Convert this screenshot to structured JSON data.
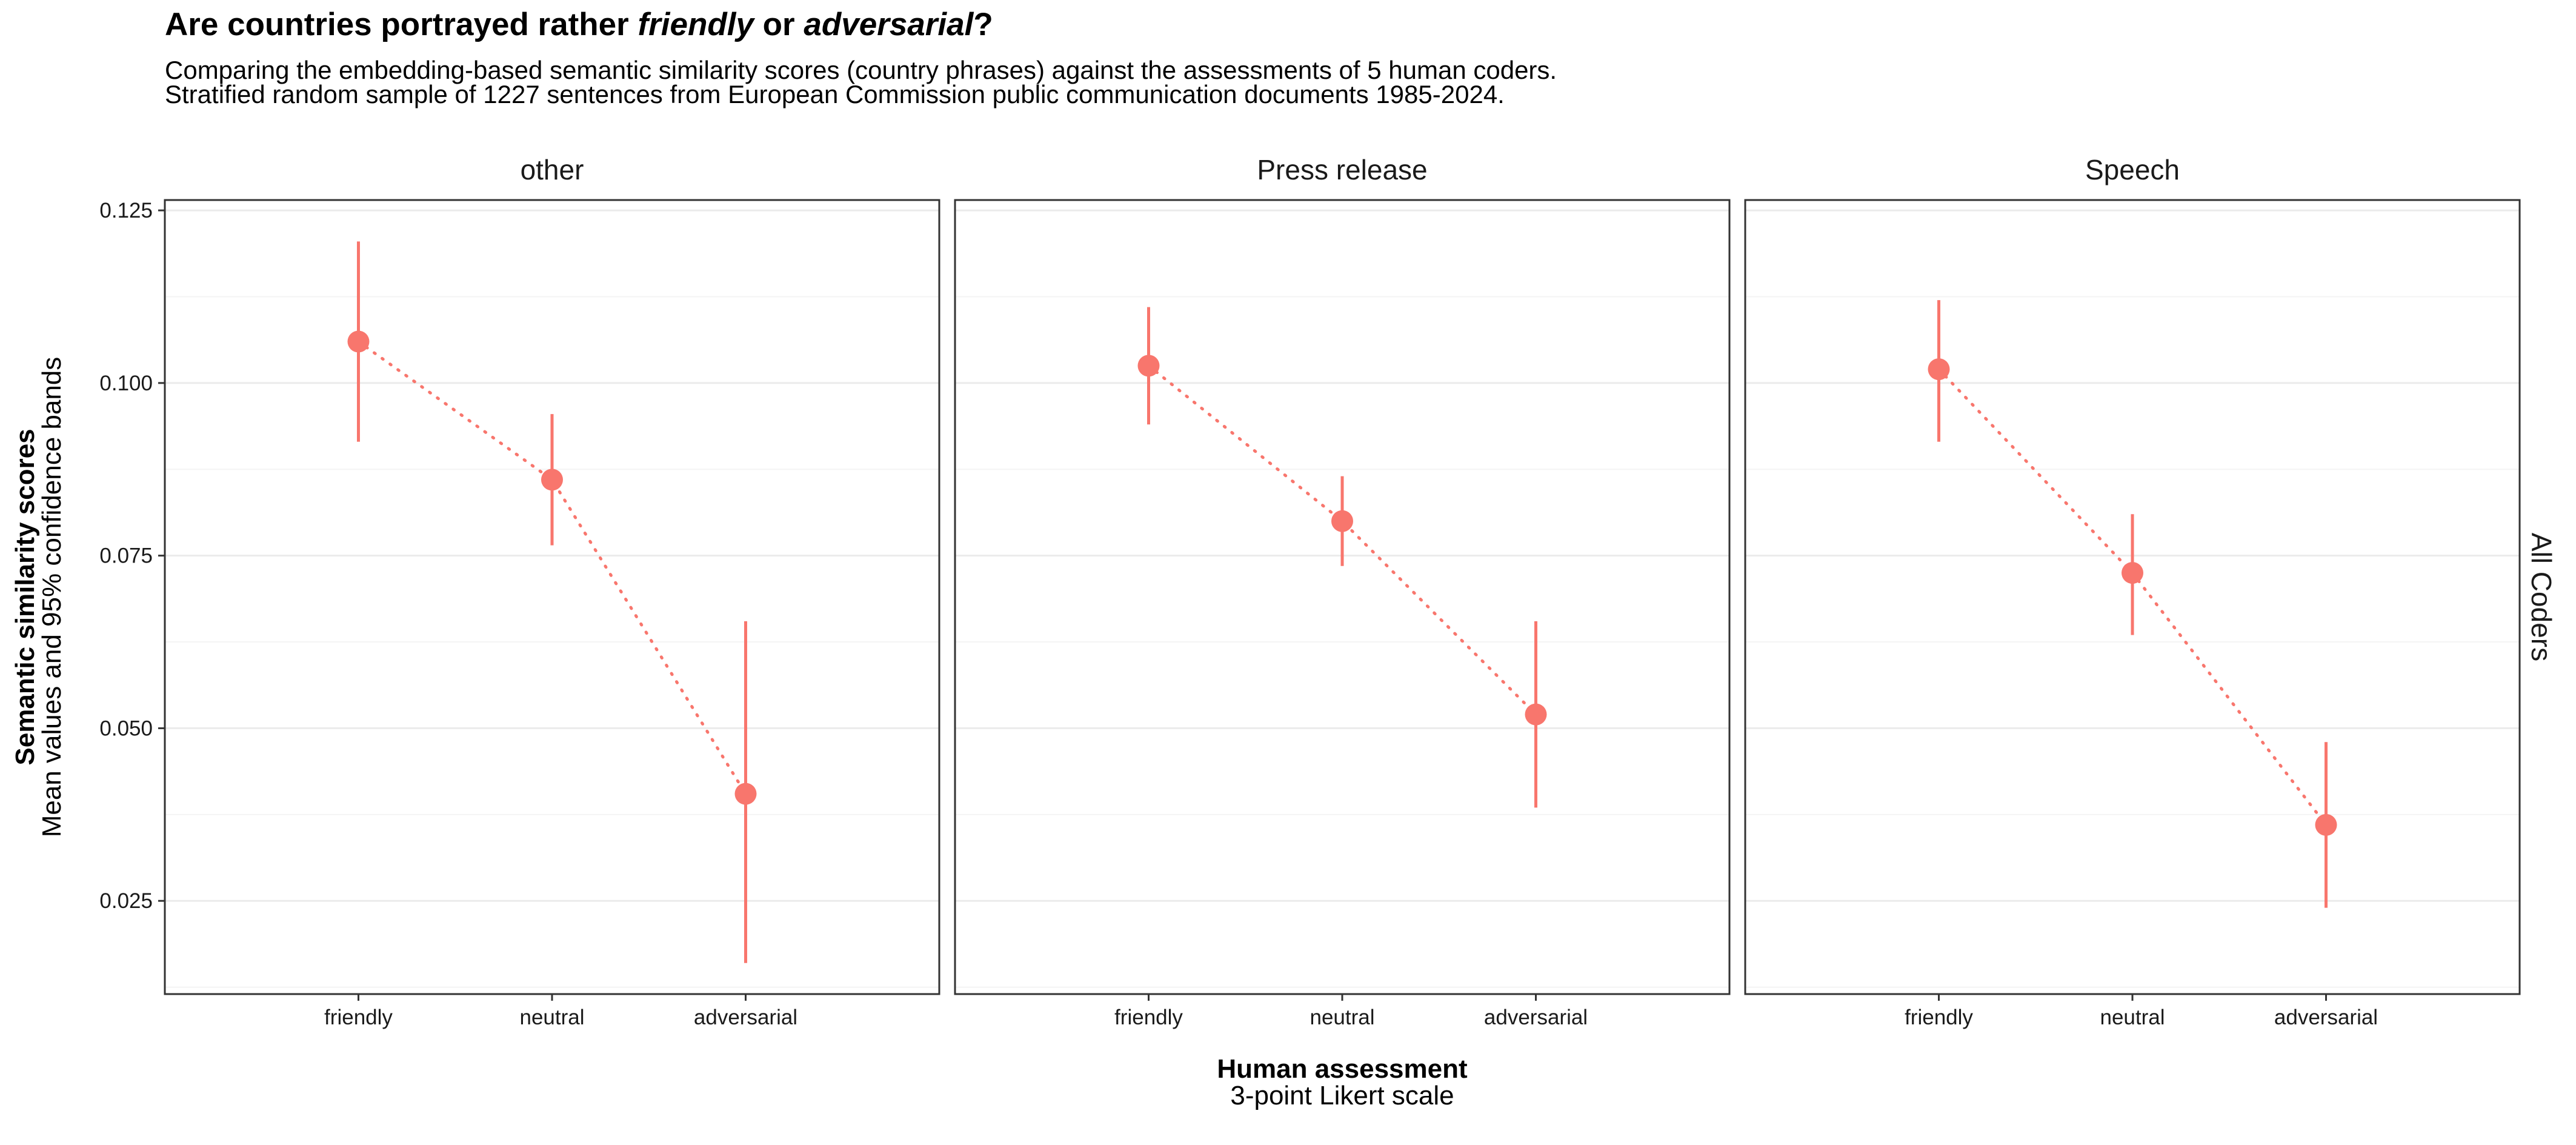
{
  "title": {
    "part1": "Are countries portrayed rather ",
    "em1": "friendly",
    "part2": " or ",
    "em2": "adversarial",
    "part3": "?"
  },
  "subtitle": {
    "line1": "Comparing the embedding-based semantic similarity scores (country phrases) against the assessments of 5 human coders.",
    "line2": "Stratified random sample of 1227 sentences from European Commission public communication documents 1985-2024."
  },
  "chart_data": {
    "type": "scatter",
    "categories": [
      "friendly",
      "neutral",
      "adversarial"
    ],
    "panels": [
      "other",
      "Press release",
      "Speech"
    ],
    "row_strip": "All Coders",
    "series": [
      {
        "panel": "other",
        "mean": [
          0.106,
          0.086,
          0.0405
        ],
        "lower": [
          0.0915,
          0.0765,
          0.016
        ],
        "upper": [
          0.1205,
          0.0955,
          0.0655
        ]
      },
      {
        "panel": "Press release",
        "mean": [
          0.1025,
          0.08,
          0.052
        ],
        "lower": [
          0.094,
          0.0735,
          0.0385
        ],
        "upper": [
          0.111,
          0.0865,
          0.0655
        ]
      },
      {
        "panel": "Speech",
        "mean": [
          0.102,
          0.0725,
          0.036
        ],
        "lower": [
          0.0915,
          0.0635,
          0.024
        ],
        "upper": [
          0.112,
          0.081,
          0.048
        ]
      }
    ],
    "ylim": [
      0.0115,
      0.1265
    ],
    "y_ticks": [
      0.025,
      0.05,
      0.075,
      0.1,
      0.125
    ],
    "y_tick_labels": [
      "0.025",
      "0.050",
      "0.075",
      "0.100",
      "0.125"
    ],
    "xlabel": "Human assessment",
    "xlabel_sub": "3-point Likert scale",
    "ylabel": "Semantic similarity scores",
    "ylabel_sub": "Mean values and 95% confidence bands",
    "grid": true,
    "legend": "none",
    "point_color": "#F8766D",
    "grid_major_color": "#EBEBEB",
    "grid_minor_color": "#F4F4F4",
    "border_color": "#333333"
  }
}
